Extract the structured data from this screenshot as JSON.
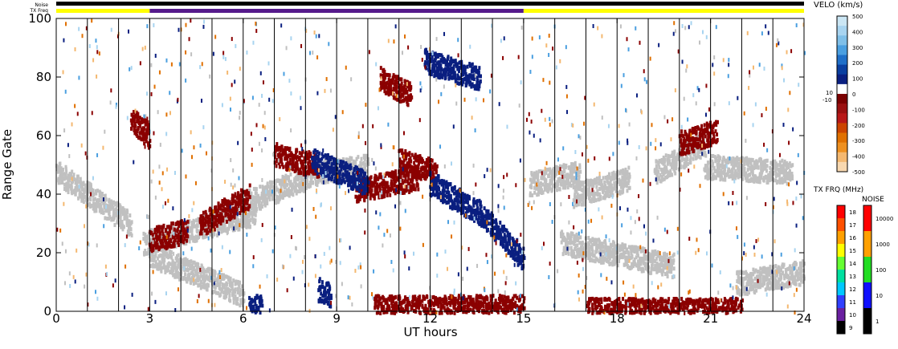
{
  "chart_data": {
    "type": "heatmap",
    "xlabel": "UT hours",
    "ylabel": "Range Gate",
    "xlim": [
      0,
      24
    ],
    "ylim": [
      0,
      100
    ],
    "x_ticks": [
      "0",
      "3",
      "6",
      "9",
      "12",
      "15",
      "18",
      "21",
      "24"
    ],
    "y_ticks": [
      "0",
      "20",
      "40",
      "60",
      "80",
      "100"
    ],
    "grid": "vertical lines at scan boundaries",
    "scan_boundaries_ut": [
      1,
      2,
      3,
      4,
      5,
      6,
      7,
      8,
      9,
      10,
      11,
      12,
      13,
      14,
      15,
      16,
      17,
      18,
      19,
      20,
      21,
      22,
      23
    ],
    "top_bars": {
      "noise_label": "Noise",
      "txfreq_label": "TX Freq",
      "txfreq_segments": [
        {
          "start": 0,
          "end": 3,
          "color": "#ffff00"
        },
        {
          "start": 3,
          "end": 15,
          "color": "#551a8b"
        },
        {
          "start": 15,
          "end": 24,
          "color": "#ffff00"
        }
      ]
    },
    "velocity_colorbar": {
      "title": "VELO (km/s)",
      "tick_labels": [
        "500",
        "400",
        "300",
        "200",
        "100",
        "0",
        "-100",
        "-200",
        "-300",
        "-400",
        "-500"
      ],
      "small_labels": [
        "10",
        "-10"
      ],
      "colors": [
        "#cbe6f4",
        "#a8d4f0",
        "#7fbfe8",
        "#4a9fe0",
        "#1f6fc8",
        "#0a3fa0",
        "#0a1f80",
        "#ffffff",
        "#7a0000",
        "#9a1010",
        "#b81818",
        "#cc4400",
        "#e07000",
        "#ee9020",
        "#f4b870",
        "#f8d8b0"
      ]
    },
    "txfreq_colorbar": {
      "title": "TX FRQ (MHz)",
      "tick_labels": [
        "18",
        "17",
        "16",
        "15",
        "14",
        "13",
        "12",
        "11",
        "10",
        "9"
      ],
      "colors": [
        "#ff0000",
        "#ff5000",
        "#ffa000",
        "#ffff00",
        "#66ff33",
        "#00e0a0",
        "#00c8ff",
        "#3040ff",
        "#6a1fa0",
        "#000000"
      ]
    },
    "noise_colorbar": {
      "title": "NOISE",
      "tick_labels": [
        "10000",
        "1000",
        "100",
        "10",
        "1"
      ],
      "colors": [
        "#ff0000",
        "#ffa000",
        "#22dd22",
        "#1010ff",
        "#000000"
      ]
    },
    "series": [
      {
        "name": "ground scatter",
        "color": "#c0c0c0",
        "bands": [
          {
            "x0": 0.0,
            "x1": 2.4,
            "y0": 48,
            "y1": 30
          },
          {
            "x0": 2.8,
            "x1": 6.4,
            "y0": 24,
            "y1": 34
          },
          {
            "x0": 3.0,
            "x1": 6.0,
            "y0": 20,
            "y1": 6
          },
          {
            "x0": 6.2,
            "x1": 8.4,
            "y0": 38,
            "y1": 48
          },
          {
            "x0": 8.4,
            "x1": 10.0,
            "y0": 48,
            "y1": 50
          },
          {
            "x0": 15.2,
            "x1": 16.8,
            "y0": 44,
            "y1": 48
          },
          {
            "x0": 16.6,
            "x1": 18.4,
            "y0": 40,
            "y1": 46
          },
          {
            "x0": 19.2,
            "x1": 20.8,
            "y0": 48,
            "y1": 58
          },
          {
            "x0": 20.8,
            "x1": 23.6,
            "y0": 50,
            "y1": 48
          },
          {
            "x0": 16.2,
            "x1": 19.8,
            "y0": 24,
            "y1": 16
          },
          {
            "x0": 21.8,
            "x1": 24.0,
            "y0": 10,
            "y1": 14
          }
        ]
      },
      {
        "name": "negative velocity",
        "color": "#8b0000",
        "bands": [
          {
            "x0": 2.4,
            "x1": 3.0,
            "y0": 66,
            "y1": 60
          },
          {
            "x0": 3.0,
            "x1": 4.2,
            "y0": 25,
            "y1": 28
          },
          {
            "x0": 4.6,
            "x1": 6.2,
            "y0": 30,
            "y1": 40
          },
          {
            "x0": 9.6,
            "x1": 11.6,
            "y0": 42,
            "y1": 46
          },
          {
            "x0": 11.0,
            "x1": 12.2,
            "y0": 52,
            "y1": 48
          },
          {
            "x0": 10.4,
            "x1": 11.4,
            "y0": 80,
            "y1": 74
          },
          {
            "x0": 7.0,
            "x1": 8.4,
            "y0": 54,
            "y1": 50
          },
          {
            "x0": 10.2,
            "x1": 15.0,
            "y0": 2,
            "y1": 2
          },
          {
            "x0": 17.0,
            "x1": 22.0,
            "y0": 1,
            "y1": 1
          },
          {
            "x0": 20.0,
            "x1": 21.2,
            "y0": 58,
            "y1": 62
          }
        ]
      },
      {
        "name": "positive velocity",
        "color": "#0a1f80",
        "bands": [
          {
            "x0": 12.0,
            "x1": 13.6,
            "y0": 44,
            "y1": 34
          },
          {
            "x0": 13.6,
            "x1": 15.0,
            "y0": 34,
            "y1": 18
          },
          {
            "x0": 11.8,
            "x1": 13.6,
            "y0": 86,
            "y1": 80
          },
          {
            "x0": 8.2,
            "x1": 10.0,
            "y0": 52,
            "y1": 44
          },
          {
            "x0": 6.2,
            "x1": 6.6,
            "y0": 2,
            "y1": 2
          },
          {
            "x0": 8.4,
            "x1": 8.8,
            "y0": 8,
            "y1": 6
          }
        ]
      }
    ]
  }
}
